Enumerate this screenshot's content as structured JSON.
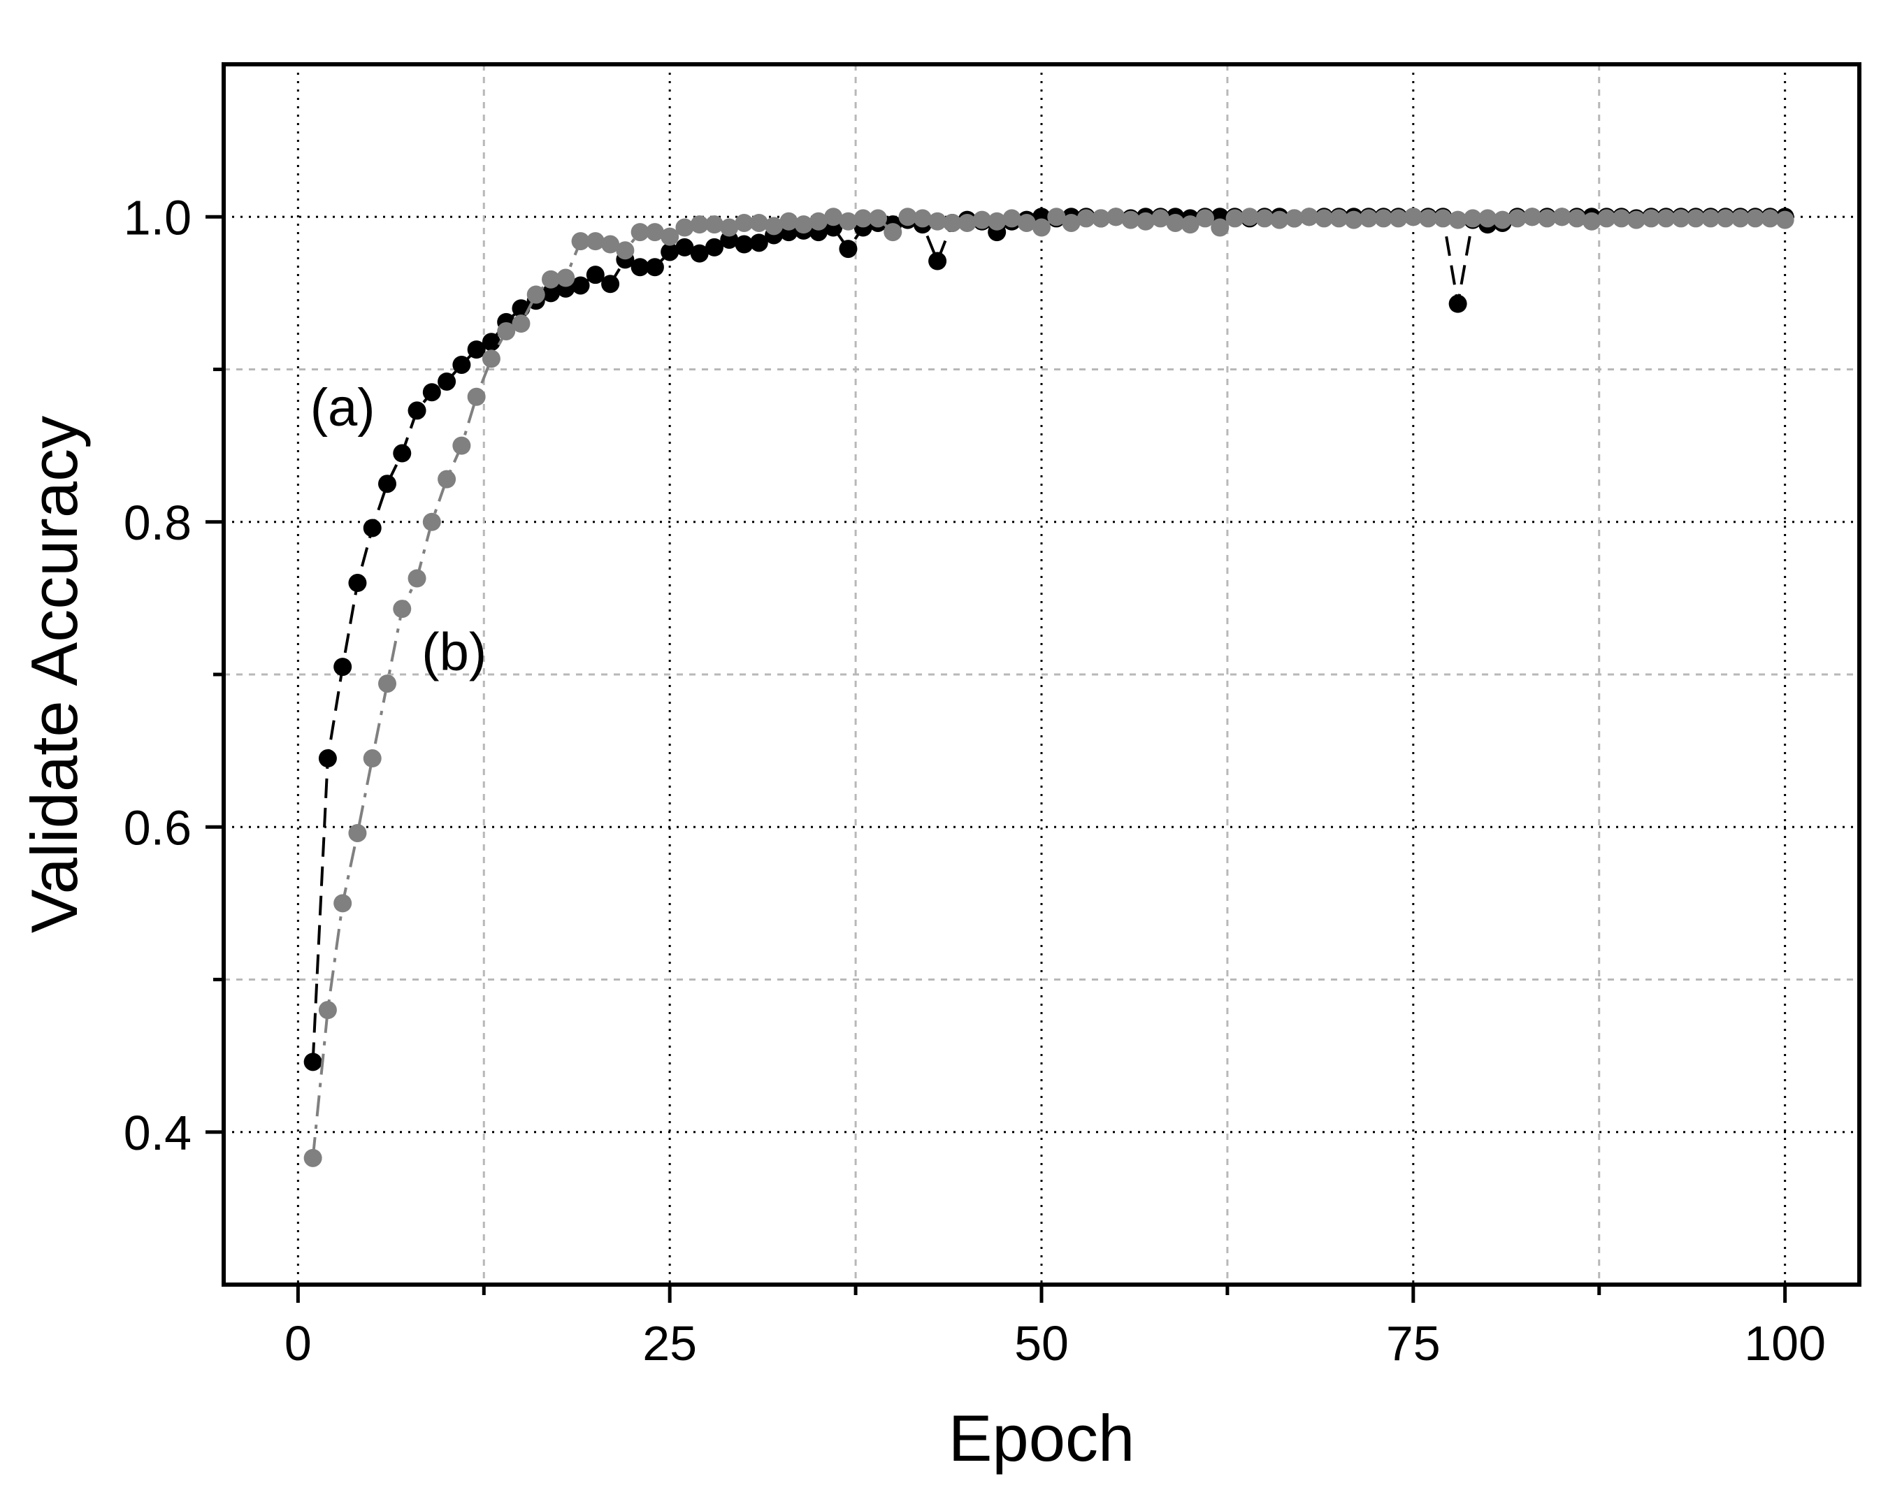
{
  "chart_data": {
    "type": "line",
    "xlabel": "Epoch",
    "ylabel": "Validate Accuracy",
    "xlim": [
      -5,
      105
    ],
    "ylim": [
      0.3,
      1.1
    ],
    "xticks": [
      0,
      25,
      50,
      75,
      100
    ],
    "xtick_labels": [
      "0",
      "25",
      "50",
      "75",
      "100"
    ],
    "xticks_minor": [
      12.5,
      37.5,
      62.5,
      87.5
    ],
    "yticks": [
      0.4,
      0.6,
      0.8,
      1.0
    ],
    "ytick_labels": [
      "0.4",
      "0.6",
      "0.8",
      "1.0"
    ],
    "yticks_minor": [
      0.5,
      0.7,
      0.9
    ],
    "grid": true,
    "annotations": [
      {
        "text": "(a)",
        "x": 3,
        "y": 0.875
      },
      {
        "text": "(b)",
        "x": 10.5,
        "y": 0.715
      }
    ],
    "x": [
      1,
      2,
      3,
      4,
      5,
      6,
      7,
      8,
      9,
      10,
      11,
      12,
      13,
      14,
      15,
      16,
      17,
      18,
      19,
      20,
      21,
      22,
      23,
      24,
      25,
      26,
      27,
      28,
      29,
      30,
      31,
      32,
      33,
      34,
      35,
      36,
      37,
      38,
      39,
      40,
      41,
      42,
      43,
      44,
      45,
      46,
      47,
      48,
      49,
      50,
      51,
      52,
      53,
      54,
      55,
      56,
      57,
      58,
      59,
      60,
      61,
      62,
      63,
      64,
      65,
      66,
      67,
      68,
      69,
      70,
      71,
      72,
      73,
      74,
      75,
      76,
      77,
      78,
      79,
      80,
      81,
      82,
      83,
      84,
      85,
      86,
      87,
      88,
      89,
      90,
      91,
      92,
      93,
      94,
      95,
      96,
      97,
      98,
      99,
      100
    ],
    "series": [
      {
        "label": "(a)",
        "color": "#000000",
        "line_style": "dash",
        "values": [
          0.446,
          0.645,
          0.705,
          0.76,
          0.796,
          0.825,
          0.845,
          0.873,
          0.885,
          0.892,
          0.903,
          0.913,
          0.918,
          0.931,
          0.94,
          0.945,
          0.95,
          0.953,
          0.955,
          0.962,
          0.956,
          0.972,
          0.967,
          0.967,
          0.977,
          0.98,
          0.976,
          0.98,
          0.985,
          0.982,
          0.983,
          0.988,
          0.99,
          0.991,
          0.99,
          0.993,
          0.979,
          0.993,
          0.996,
          0.995,
          0.998,
          0.995,
          0.971,
          0.996,
          0.998,
          0.997,
          0.99,
          0.997,
          0.998,
          1.0,
          0.999,
          1.0,
          1.0,
          0.999,
          1.0,
          0.999,
          1.0,
          1.0,
          1.0,
          0.999,
          1.0,
          1.0,
          1.0,
          0.999,
          1.0,
          1.0,
          0.999,
          1.0,
          1.0,
          1.0,
          1.0,
          1.0,
          1.0,
          1.0,
          1.0,
          1.0,
          1.0,
          0.943,
          0.998,
          0.995,
          0.996,
          1.0,
          1.0,
          1.0,
          1.0,
          1.0,
          1.0,
          1.0,
          1.0,
          0.999,
          1.0,
          1.0,
          1.0,
          1.0,
          1.0,
          1.0,
          1.0,
          1.0,
          1.0,
          1.0
        ]
      },
      {
        "label": "(b)",
        "color": "#808080",
        "line_style": "dashdot",
        "values": [
          0.383,
          0.48,
          0.55,
          0.596,
          0.645,
          0.694,
          0.743,
          0.763,
          0.8,
          0.828,
          0.85,
          0.882,
          0.907,
          0.925,
          0.93,
          0.949,
          0.959,
          0.96,
          0.984,
          0.984,
          0.982,
          0.978,
          0.99,
          0.99,
          0.987,
          0.993,
          0.995,
          0.995,
          0.993,
          0.996,
          0.996,
          0.994,
          0.997,
          0.995,
          0.997,
          1.0,
          0.997,
          0.999,
          0.999,
          0.99,
          1.0,
          0.999,
          0.997,
          0.996,
          0.996,
          0.998,
          0.997,
          0.999,
          0.996,
          0.993,
          1.0,
          0.996,
          0.999,
          0.999,
          1.0,
          0.998,
          0.997,
          0.999,
          0.996,
          0.995,
          0.999,
          0.993,
          0.999,
          1.0,
          0.999,
          0.998,
          0.999,
          1.0,
          0.999,
          0.999,
          0.998,
          0.999,
          0.999,
          0.999,
          1.0,
          0.999,
          0.999,
          0.998,
          0.999,
          0.999,
          0.998,
          0.999,
          1.0,
          0.999,
          1.0,
          0.999,
          0.997,
          0.999,
          0.999,
          0.998,
          0.999,
          0.999,
          0.999,
          0.999,
          0.999,
          0.999,
          0.999,
          0.999,
          0.999,
          0.998
        ]
      }
    ]
  }
}
